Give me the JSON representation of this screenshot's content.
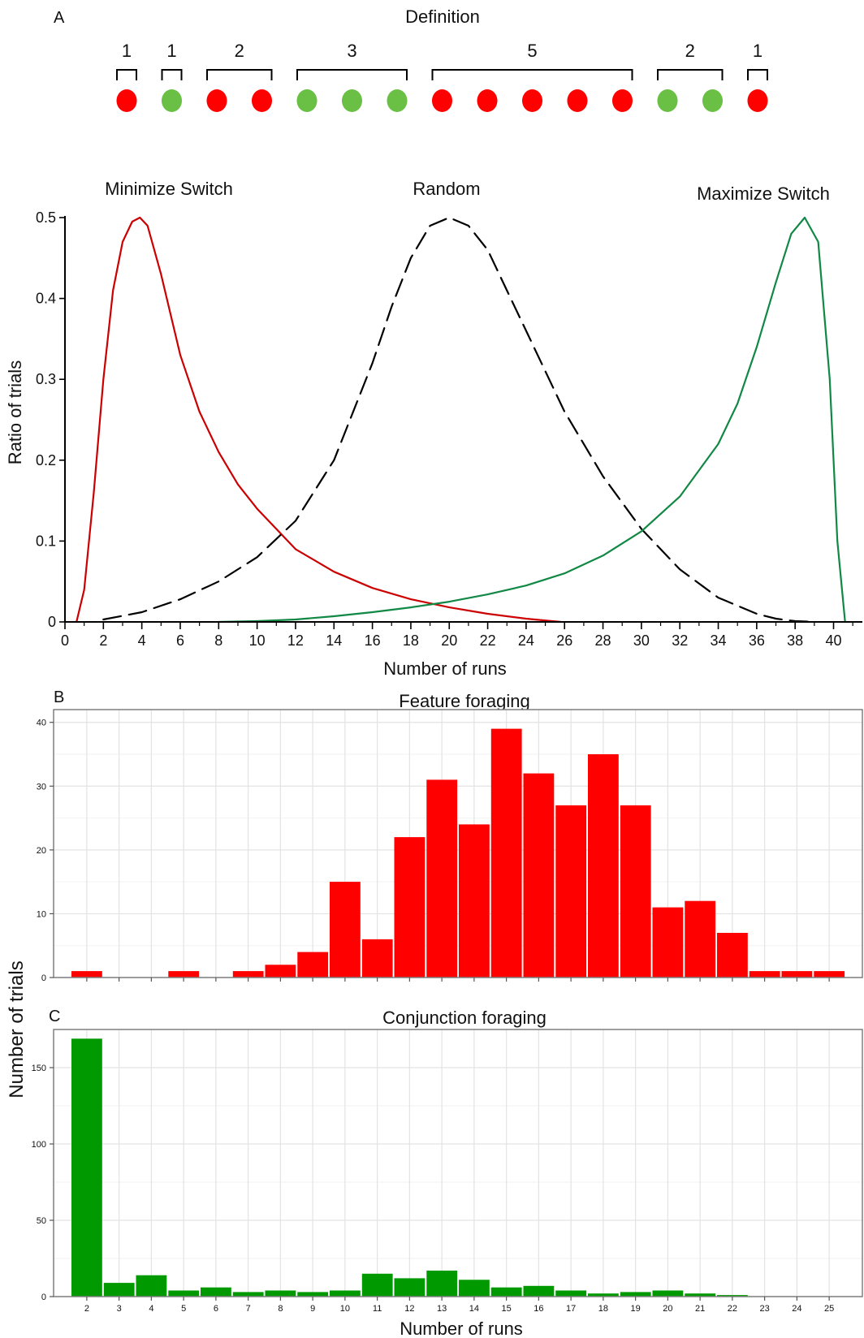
{
  "panel_labels": {
    "a": "A",
    "b": "B",
    "c": "C"
  },
  "definition": {
    "title": "Definition",
    "groups": [
      {
        "count": "1",
        "color": "red"
      },
      {
        "count": "1",
        "color": "green"
      },
      {
        "count": "2",
        "color": "red"
      },
      {
        "count": "3",
        "color": "green"
      },
      {
        "count": "5",
        "color": "red"
      },
      {
        "count": "2",
        "color": "green"
      },
      {
        "count": "1",
        "color": "red"
      }
    ],
    "colors": {
      "red": "#ff0000",
      "green": "#6abf45"
    }
  },
  "shared_ylabel": "Number of trials",
  "chart_data": [
    {
      "type": "line",
      "title": "",
      "xlabel": "Number of runs",
      "ylabel": "Ratio of trials",
      "xlim": [
        0,
        41.5
      ],
      "ylim": [
        0,
        0.5
      ],
      "xticks": [
        0,
        2,
        4,
        6,
        8,
        10,
        12,
        14,
        16,
        18,
        20,
        22,
        24,
        26,
        28,
        30,
        32,
        34,
        36,
        38,
        40
      ],
      "yticks": [
        0,
        0.1,
        0.2,
        0.3,
        0.4,
        0.5
      ],
      "ytick_labels": [
        "0",
        "0.1",
        "0.2",
        "0.3",
        "0.4",
        "0.5"
      ],
      "annotations": [
        "Minimize Switch",
        "Random",
        "Maximize Switch"
      ],
      "series": [
        {
          "color": "#cc0000",
          "dash": "solid",
          "x": [
            0.6,
            1.0,
            1.5,
            2.0,
            2.5,
            3.0,
            3.5,
            3.9,
            4.3,
            5.0,
            6.0,
            7.0,
            8.0,
            9.0,
            10.0,
            12.0,
            14.0,
            16.0,
            18.0,
            20.0,
            22.0,
            24.0,
            25.8
          ],
          "y": [
            0.0,
            0.04,
            0.16,
            0.3,
            0.41,
            0.47,
            0.495,
            0.5,
            0.49,
            0.43,
            0.33,
            0.26,
            0.21,
            0.17,
            0.14,
            0.09,
            0.062,
            0.042,
            0.028,
            0.018,
            0.01,
            0.004,
            0.0
          ]
        },
        {
          "color": "#000000",
          "dash": "dashed",
          "x": [
            2,
            4,
            6,
            8,
            10,
            12,
            14,
            16,
            17,
            18,
            19,
            20,
            21,
            22,
            23,
            24,
            26,
            28,
            30,
            32,
            34,
            36,
            37,
            38,
            39
          ],
          "y": [
            0.003,
            0.012,
            0.028,
            0.05,
            0.08,
            0.125,
            0.2,
            0.32,
            0.39,
            0.45,
            0.49,
            0.5,
            0.49,
            0.46,
            0.41,
            0.36,
            0.26,
            0.18,
            0.115,
            0.065,
            0.03,
            0.01,
            0.004,
            0.001,
            0.0
          ]
        },
        {
          "color": "#118844",
          "dash": "solid",
          "x": [
            8,
            10,
            12,
            14,
            16,
            18,
            20,
            22,
            24,
            26,
            28,
            30,
            32,
            34,
            35,
            36,
            37,
            37.8,
            38.5,
            39.2,
            39.8,
            40.2,
            40.6
          ],
          "y": [
            0.0,
            0.001,
            0.003,
            0.007,
            0.012,
            0.018,
            0.025,
            0.034,
            0.045,
            0.06,
            0.082,
            0.112,
            0.155,
            0.22,
            0.27,
            0.34,
            0.42,
            0.48,
            0.5,
            0.47,
            0.3,
            0.1,
            0.0
          ]
        }
      ]
    },
    {
      "type": "bar",
      "title": "Feature foraging",
      "xlabel": "",
      "ylabel": "",
      "color": "#ff0000",
      "ylim": [
        0,
        42
      ],
      "yticks": [
        0,
        10,
        20,
        30,
        40
      ],
      "categories": [
        2,
        3,
        4,
        5,
        6,
        7,
        8,
        9,
        10,
        11,
        12,
        13,
        14,
        15,
        16,
        17,
        18,
        19,
        20,
        21,
        22,
        23,
        24,
        25
      ],
      "values": [
        1,
        0,
        0,
        1,
        0,
        1,
        2,
        4,
        15,
        6,
        22,
        31,
        24,
        39,
        32,
        27,
        35,
        27,
        11,
        12,
        7,
        1,
        1,
        1
      ]
    },
    {
      "type": "bar",
      "title": "Conjunction foraging",
      "xlabel": "Number of runs",
      "ylabel": "",
      "color": "#009900",
      "ylim": [
        0,
        175
      ],
      "yticks": [
        0,
        50,
        100,
        150
      ],
      "categories": [
        2,
        3,
        4,
        5,
        6,
        7,
        8,
        9,
        10,
        11,
        12,
        13,
        14,
        15,
        16,
        17,
        18,
        19,
        20,
        21,
        22,
        23,
        24,
        25
      ],
      "values": [
        169,
        9,
        14,
        4,
        6,
        3,
        4,
        3,
        4,
        15,
        12,
        17,
        11,
        6,
        7,
        4,
        2,
        3,
        4,
        2,
        1,
        0,
        0,
        0
      ]
    }
  ]
}
